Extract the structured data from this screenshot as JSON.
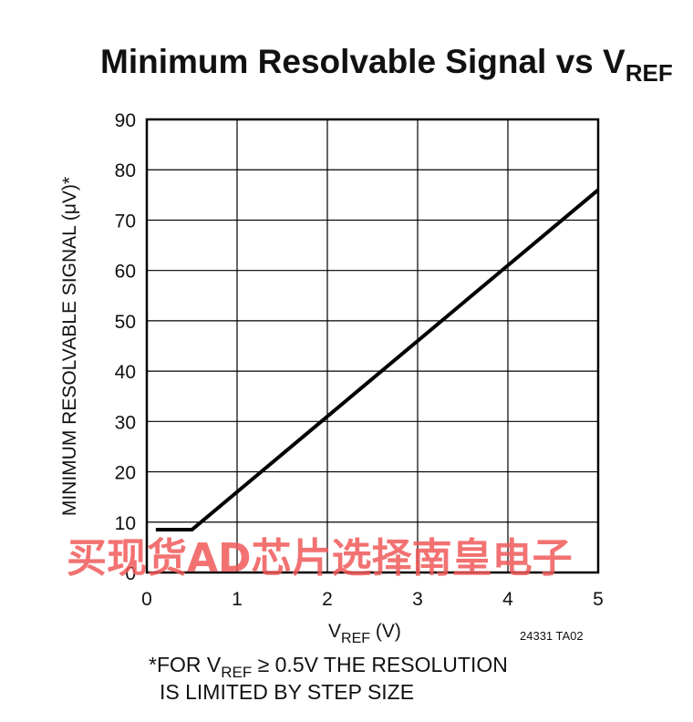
{
  "chart_data": {
    "type": "line",
    "title": "Minimum Resolvable Signal vs V",
    "title_subscript": "REF",
    "xlabel": "V",
    "xlabel_subscript": "REF",
    "xlabel_unit": " (V)",
    "ylabel": "MINIMUM RESOLVABLE SIGNAL (μV)*",
    "xlim": [
      0,
      5
    ],
    "ylim": [
      0,
      90
    ],
    "x_ticks": [
      "0",
      "1",
      "2",
      "3",
      "4",
      "5"
    ],
    "y_ticks": [
      "0",
      "10",
      "20",
      "30",
      "40",
      "50",
      "60",
      "70",
      "80",
      "90"
    ],
    "grid": true,
    "series": [
      {
        "x": [
          0.1,
          0.5,
          1.0,
          2.0,
          3.0,
          4.0,
          5.0
        ],
        "y": [
          8.5,
          8.5,
          16.0,
          31.0,
          46.0,
          61.0,
          76.0
        ]
      }
    ]
  },
  "figure_id": "24331 TA02",
  "footnote": {
    "line1_prefix": "*FOR V",
    "line1_sub": "REF",
    "line1_suffix": " ≥ 0.5V THE RESOLUTION",
    "line2": "IS LIMITED BY STEP SIZE"
  },
  "watermark": "买现货AD芯片选择南皇电子",
  "colors": {
    "line": "#000000",
    "grid": "#000000",
    "watermark": "#f05a5a"
  }
}
